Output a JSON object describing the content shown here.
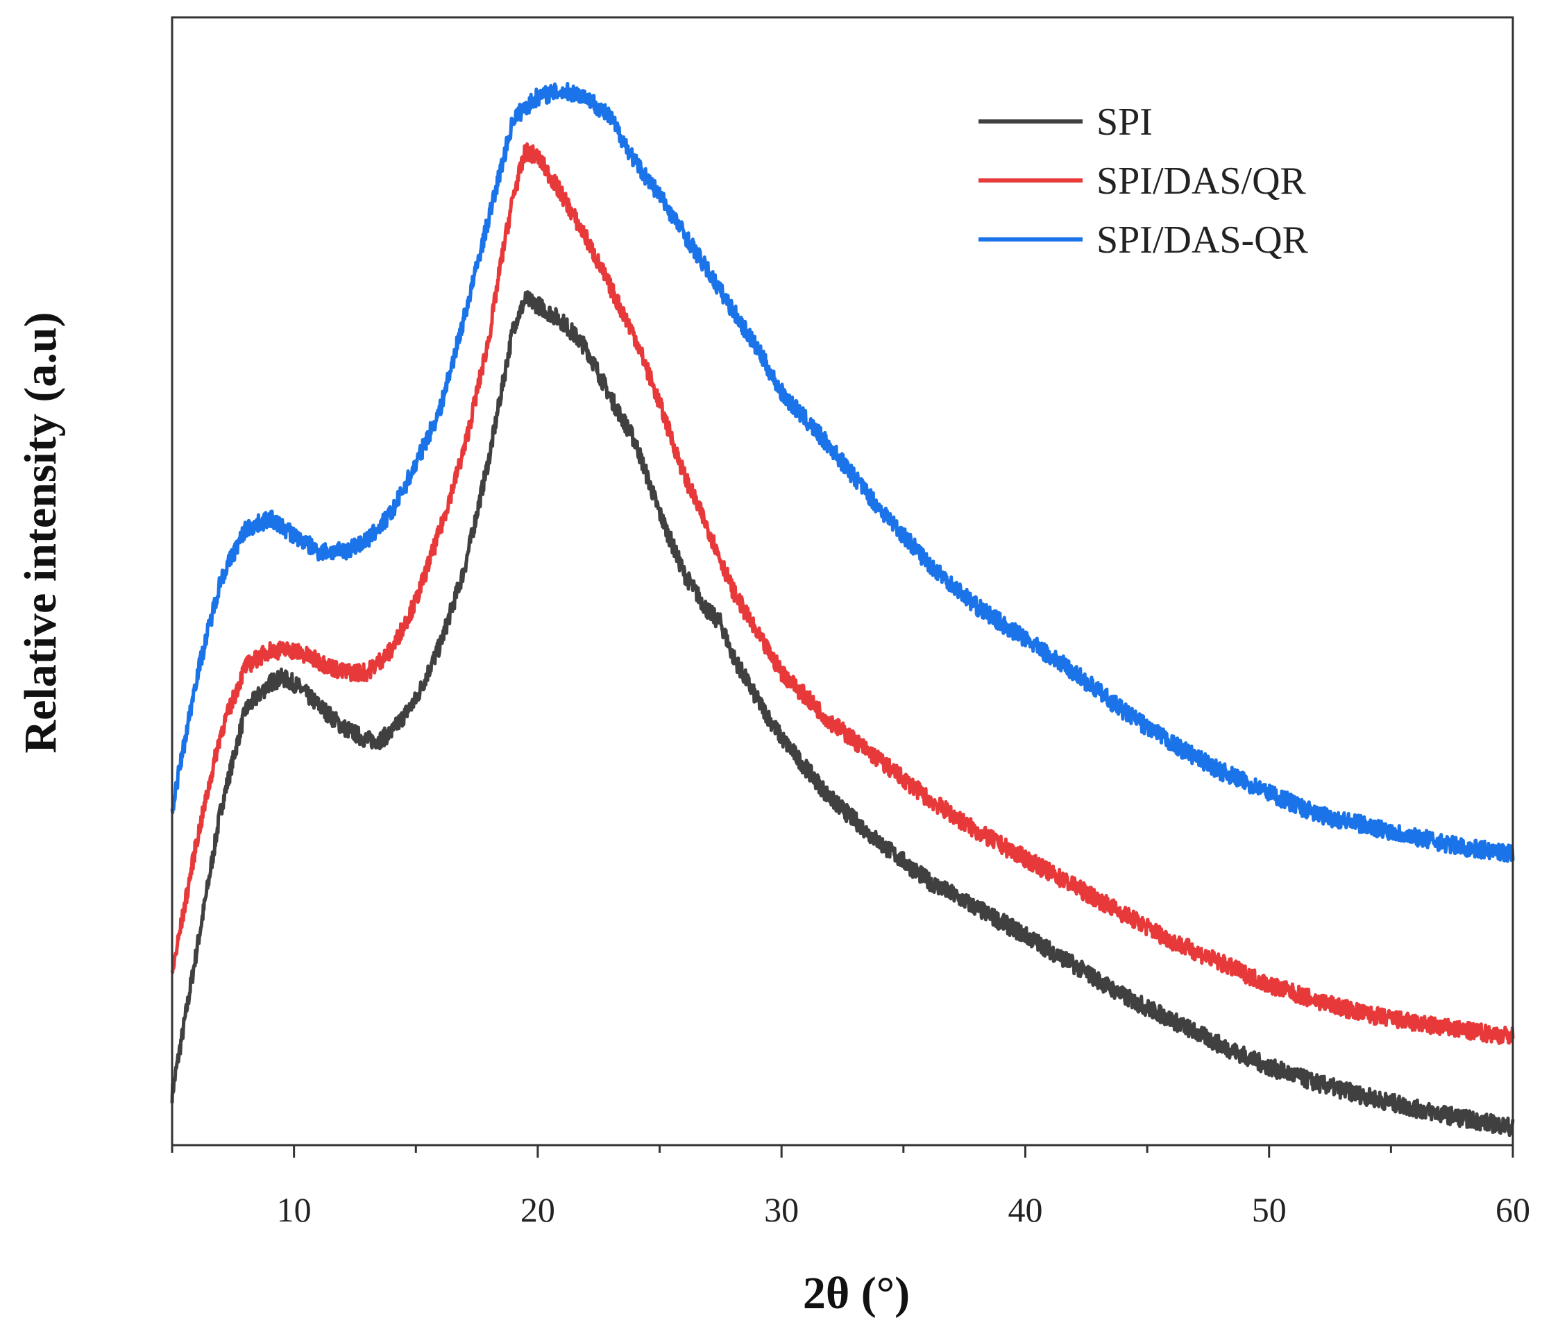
{
  "chart_data": {
    "type": "line",
    "title": "",
    "xlabel": "2θ (°)",
    "ylabel": "Relative intensity (a.u)",
    "xlim": [
      5,
      60
    ],
    "ylim": [
      0,
      100
    ],
    "y_ticks_labeled": false,
    "x_ticks": [
      "10",
      "20",
      "30",
      "40",
      "50",
      "60"
    ],
    "grid": false,
    "legend_position": "top-right",
    "series": [
      {
        "name": "SPI",
        "color": "#404040",
        "x": [
          5,
          6,
          7,
          8,
          9,
          9.5,
          10,
          11,
          12,
          13,
          13.5,
          14,
          15,
          16,
          17,
          18,
          18.5,
          19,
          19.5,
          20,
          21,
          22,
          23,
          24,
          25,
          26,
          27,
          27.5,
          28,
          29,
          30,
          32,
          34,
          36,
          38,
          40,
          42,
          44,
          46,
          48,
          50,
          52,
          54,
          56,
          58,
          60
        ],
        "y": [
          4,
          17,
          30,
          39,
          41.5,
          42,
          41.5,
          39.5,
          37.5,
          36.3,
          36.3,
          37,
          40,
          45,
          52,
          62,
          68,
          74,
          76.5,
          76,
          74.5,
          72,
          67.5,
          63.5,
          57,
          51.5,
          48,
          47,
          44,
          40,
          36.5,
          31,
          27,
          23.5,
          21,
          18.5,
          15.8,
          13,
          10.8,
          8.5,
          6.5,
          5,
          3.8,
          2.7,
          1.8,
          1
        ]
      },
      {
        "name": "SPI/DAS/QR",
        "color": "#E8393A",
        "x": [
          5,
          6,
          7,
          8,
          9,
          10,
          11,
          12,
          13,
          14,
          15,
          16,
          17,
          18,
          18.5,
          19,
          19.5,
          20,
          21,
          22,
          23,
          24,
          25,
          26,
          27,
          28,
          29,
          30,
          32,
          34,
          36,
          38,
          40,
          42,
          44,
          46,
          48,
          50,
          52,
          54,
          56,
          58,
          60
        ],
        "y": [
          15,
          27,
          37,
          43,
          44.5,
          44.5,
          43.5,
          42.5,
          42.5,
          44.5,
          49,
          55.5,
          63,
          73,
          80,
          86,
          90,
          89.5,
          86,
          82,
          77.5,
          73,
          67,
          60.5,
          55.5,
          50,
          46,
          42.5,
          38,
          34.5,
          31,
          28,
          25.5,
          23,
          20.5,
          18,
          16,
          14,
          12.5,
          11.3,
          10.5,
          9.8,
          9.3
        ]
      },
      {
        "name": "SPI/DAS-QR",
        "color": "#1A73E8",
        "x": [
          5,
          6,
          7,
          8,
          9,
          10,
          11,
          12,
          13,
          14,
          15,
          16,
          17,
          18,
          19,
          20,
          21,
          22,
          23,
          24,
          25,
          26,
          27,
          28,
          29,
          30,
          32,
          34,
          36,
          38,
          40,
          42,
          44,
          46,
          48,
          50,
          52,
          54,
          56,
          58,
          60
        ],
        "y": [
          30,
          42,
          51,
          55.5,
          56.5,
          55,
          53.5,
          53.5,
          54.5,
          57,
          61.5,
          66.5,
          75,
          84,
          93,
          95,
          95.5,
          95,
          93,
          89,
          86,
          82.5,
          79,
          75.5,
          72,
          68,
          63,
          57.5,
          52.5,
          48.5,
          45.5,
          42.5,
          39,
          36,
          33.5,
          31.5,
          29.5,
          28.5,
          27.5,
          26.5,
          26
        ]
      }
    ]
  }
}
